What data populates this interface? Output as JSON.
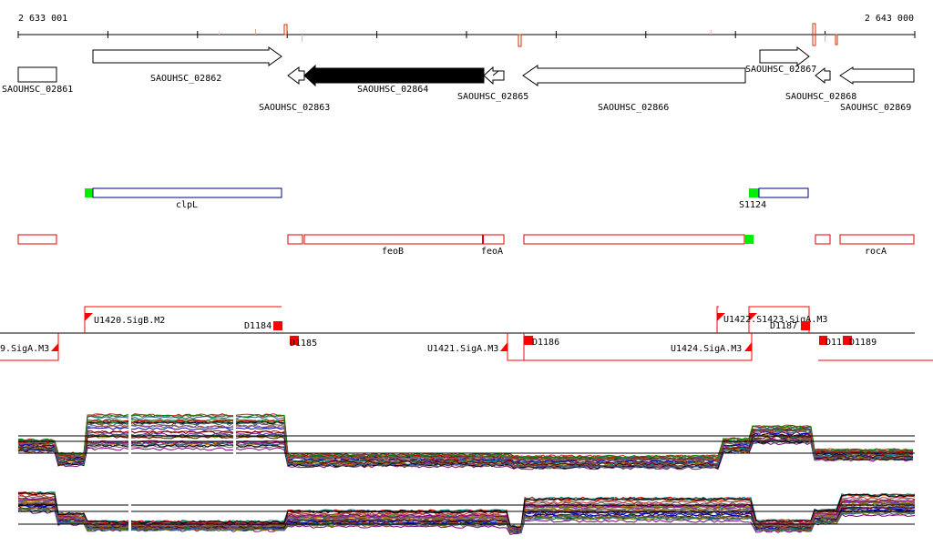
{
  "ruler": {
    "start_label": "2 633 001",
    "end_label": "2 643 000"
  },
  "genes": [
    {
      "id": "SAOUHSC_02861",
      "label": "SAOUHSC_02861",
      "strand": "+",
      "filled": false
    },
    {
      "id": "SAOUHSC_02862",
      "label": "SAOUHSC_02862",
      "strand": "+",
      "filled": false
    },
    {
      "id": "SAOUHSC_02863",
      "label": "SAOUHSC_02863",
      "strand": "-",
      "filled": false
    },
    {
      "id": "SAOUHSC_02864",
      "label": "SAOUHSC_02864",
      "strand": "-",
      "filled": true
    },
    {
      "id": "SAOUHSC_02865",
      "label": "SAOUHSC_02865",
      "strand": "-",
      "filled": false
    },
    {
      "id": "SAOUHSC_02866",
      "label": "SAOUHSC_02866",
      "strand": "-",
      "filled": false
    },
    {
      "id": "SAOUHSC_02867",
      "label": "SAOUHSC_02867",
      "strand": "+",
      "filled": false
    },
    {
      "id": "SAOUHSC_02868",
      "label": "SAOUHSC_02868",
      "strand": "-",
      "filled": false
    },
    {
      "id": "SAOUHSC_02869",
      "label": "SAOUHSC_02869",
      "strand": "-",
      "filled": false
    }
  ],
  "operons_plus": [
    {
      "label": "clpL"
    },
    {
      "label": "S1124"
    }
  ],
  "operons_minus": [
    {
      "label": ""
    },
    {
      "label": ""
    },
    {
      "label": "feoB"
    },
    {
      "label": "feoA"
    },
    {
      "label": ""
    },
    {
      "label": ""
    },
    {
      "label": "rocA"
    }
  ],
  "features": [
    {
      "label": "9.SigA.M3"
    },
    {
      "label": "U1420.SigB.M2"
    },
    {
      "label": "D1184"
    },
    {
      "label": "D1185"
    },
    {
      "label": "U1421.SigA.M3"
    },
    {
      "label": "D1186"
    },
    {
      "label": "U1422.S1423.SigA.M3"
    },
    {
      "label": "U1424.SigA.M3"
    },
    {
      "label": "D1187"
    },
    {
      "label": "D11"
    },
    {
      "label": "D1189"
    }
  ],
  "colors": {
    "ruler": "#000000",
    "gene_outline": "#000000",
    "gene_filled": "#000000",
    "operon": "#dd0000",
    "start_marker": "#00ee00",
    "clpl_box": "#000080",
    "feature": "#ff0000"
  }
}
